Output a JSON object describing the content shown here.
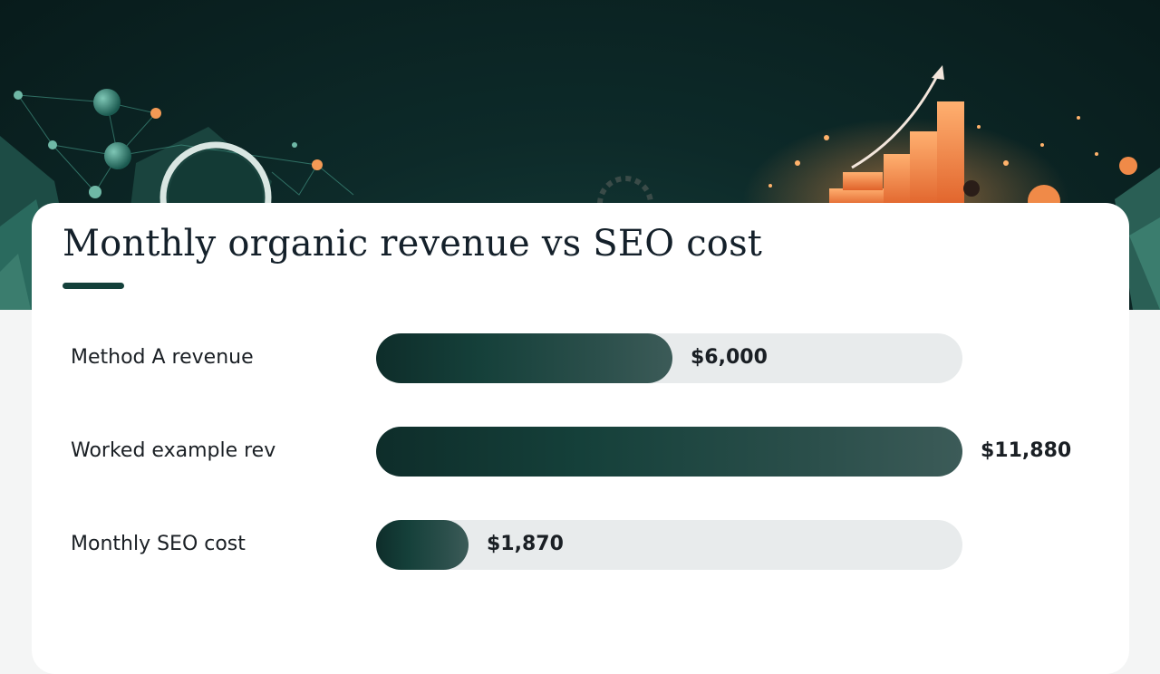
{
  "chart_data": {
    "type": "bar",
    "orientation": "horizontal",
    "title": "Monthly organic revenue vs SEO cost",
    "categories": [
      "Method A revenue",
      "Worked example rev",
      "Monthly SEO cost"
    ],
    "values": [
      6000,
      11880,
      1870
    ],
    "value_labels": [
      "$6,000",
      "$11,880",
      "$1,870"
    ],
    "xlim": [
      0,
      11880
    ],
    "grid": false,
    "legend": "none",
    "colors": {
      "bar_dark": "#0e2d2a",
      "bar_light": "#3c5b58",
      "track": "#e8ebec",
      "accent_underline": "#14413b"
    }
  }
}
